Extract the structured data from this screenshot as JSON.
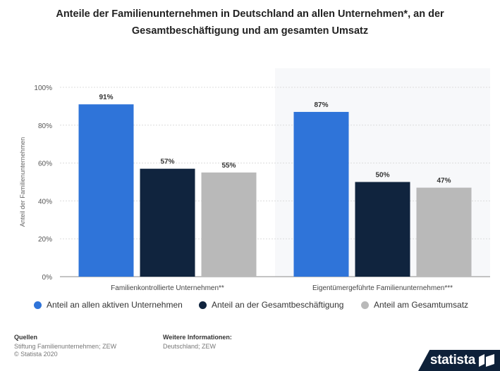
{
  "title": "Anteile der Familienunternehmen in Deutschland an allen Unternehmen*, an der Gesamtbeschäftigung und am gesamten Umsatz",
  "chart_data": {
    "type": "bar",
    "title": "Anteile der Familienunternehmen in Deutschland an allen Unternehmen*, an der Gesamtbeschäftigung und am gesamten Umsatz",
    "categories": [
      "Familienkontrollierte Unternehmen**",
      "Eigentümergeführte Familienunternehmen***"
    ],
    "series": [
      {
        "name": "Anteil an allen aktiven Unternehmen",
        "values": [
          91,
          87
        ],
        "labels": [
          "91%",
          "87%"
        ],
        "color": "#2f74d9"
      },
      {
        "name": "Anteil an der Gesamtbeschäftigung",
        "values": [
          57,
          50
        ],
        "labels": [
          "57%",
          "50%"
        ],
        "color": "#10243e"
      },
      {
        "name": "Anteil am Gesamtumsatz",
        "values": [
          55,
          47
        ],
        "labels": [
          "55%",
          "47%"
        ],
        "color": "#b9b9b9"
      }
    ],
    "yticks": [
      0,
      20,
      40,
      60,
      80,
      100
    ],
    "ytick_labels": [
      "0%",
      "20%",
      "40%",
      "60%",
      "80%",
      "100%"
    ],
    "ylabel": "Anteil der Familienunternehmen",
    "xlabel": "",
    "ylim": [
      0,
      100
    ],
    "grid": true,
    "legend_position": "bottom"
  },
  "footer": {
    "sources_label": "Quellen",
    "sources_text": "Stiftung Familienunternehmen; ZEW",
    "copyright": "© Statista 2020",
    "more_info_label": "Weitere Informationen:",
    "more_info_text": "Deutschland; ZEW"
  },
  "brand": {
    "name": "statista",
    "color": "#0e2139"
  }
}
